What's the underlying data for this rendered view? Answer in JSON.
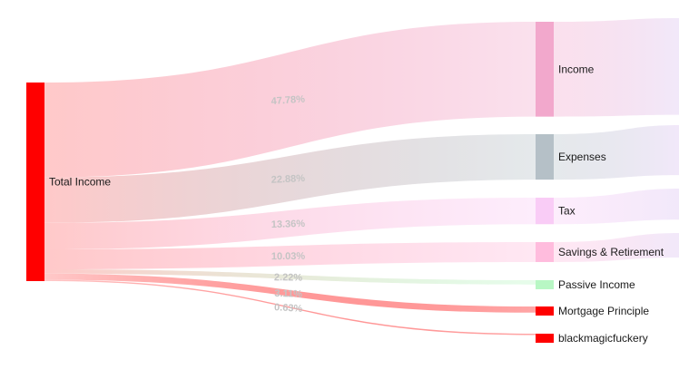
{
  "chart_data": {
    "type": "sankey",
    "source": {
      "label": "Total Income",
      "color": "#ff0000"
    },
    "targets": [
      {
        "label": "Income",
        "percent_label": "47.78%",
        "value": 47.78,
        "color": "#f2a8cc"
      },
      {
        "label": "Expenses",
        "percent_label": "22.88%",
        "value": 22.88,
        "color": "#b5c0c7"
      },
      {
        "label": "Tax",
        "percent_label": "13.36%",
        "value": 13.36,
        "color": "#f9ccf6"
      },
      {
        "label": "Savings & Retirement",
        "percent_label": "10.03%",
        "value": 10.03,
        "color": "#ffbcdd"
      },
      {
        "label": "Passive Income",
        "percent_label": "2.22%",
        "value": 2.22,
        "color": "#b8f7c4"
      },
      {
        "label": "Mortgage Principle",
        "percent_label": "3.11%",
        "value": 3.11,
        "color": "#ff0000"
      },
      {
        "label": "blackmagicfuckery",
        "percent_label": "0.63%",
        "value": 0.63,
        "color": "#ff0000"
      }
    ]
  }
}
